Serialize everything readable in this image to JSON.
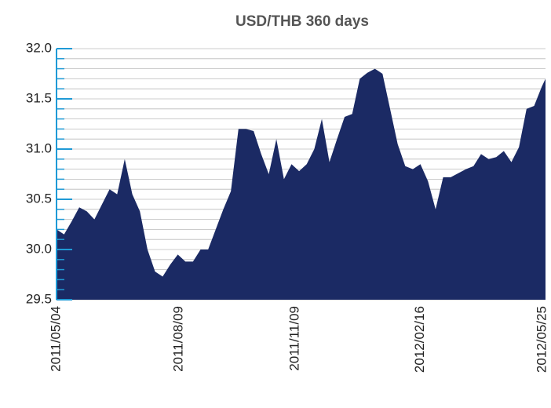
{
  "chart_data": {
    "type": "area",
    "title": "USD/THB 360 days",
    "x": [
      "2011/05/04",
      "2011/05/10",
      "2011/05/16",
      "2011/05/22",
      "2011/05/28",
      "2011/06/03",
      "2011/06/09",
      "2011/06/15",
      "2011/06/21",
      "2011/06/27",
      "2011/07/03",
      "2011/07/09",
      "2011/07/15",
      "2011/07/21",
      "2011/07/27",
      "2011/08/02",
      "2011/08/08",
      "2011/08/14",
      "2011/08/20",
      "2011/08/26",
      "2011/09/01",
      "2011/09/07",
      "2011/09/13",
      "2011/09/19",
      "2011/09/25",
      "2011/10/01",
      "2011/10/07",
      "2011/10/13",
      "2011/10/19",
      "2011/10/25",
      "2011/10/31",
      "2011/11/06",
      "2011/11/12",
      "2011/11/18",
      "2011/11/24",
      "2011/11/30",
      "2011/12/06",
      "2011/12/12",
      "2011/12/18",
      "2011/12/24",
      "2011/12/30",
      "2012/01/05",
      "2012/01/11",
      "2012/01/17",
      "2012/01/23",
      "2012/01/29",
      "2012/02/04",
      "2012/02/10",
      "2012/02/16",
      "2012/02/22",
      "2012/02/28",
      "2012/03/05",
      "2012/03/11",
      "2012/03/17",
      "2012/03/23",
      "2012/03/29",
      "2012/04/04",
      "2012/04/10",
      "2012/04/16",
      "2012/04/22",
      "2012/04/28",
      "2012/05/04",
      "2012/05/10",
      "2012/05/16",
      "2012/05/22",
      "2012/05/25"
    ],
    "values": [
      30.2,
      30.15,
      30.28,
      30.42,
      30.38,
      30.3,
      30.45,
      30.6,
      30.55,
      30.9,
      30.55,
      30.38,
      30.0,
      29.78,
      29.73,
      29.85,
      29.95,
      29.88,
      29.88,
      30.0,
      30.0,
      30.2,
      30.4,
      30.58,
      31.2,
      31.2,
      31.18,
      30.95,
      30.75,
      31.1,
      30.7,
      30.85,
      30.78,
      30.85,
      31.0,
      31.3,
      30.87,
      31.1,
      31.32,
      31.35,
      31.7,
      31.76,
      31.8,
      31.75,
      31.4,
      31.05,
      30.83,
      30.8,
      30.85,
      30.68,
      30.4,
      30.72,
      30.72,
      30.76,
      30.8,
      30.83,
      30.95,
      30.9,
      30.92,
      30.98,
      30.87,
      31.02,
      31.4,
      31.43,
      31.62,
      31.7
    ],
    "color": "#1b2a64",
    "xlim": [
      "2011/05/04",
      "2012/05/25"
    ],
    "xticks": [
      "2011/05/04",
      "2011/08/09",
      "2011/11/09",
      "2012/02/16",
      "2012/05/25"
    ],
    "ylim": [
      29.5,
      32
    ],
    "yticks": [
      29.5,
      {
        "value": 30,
        "label": "30.0"
      },
      30.5,
      {
        "value": 31,
        "label": "31.0"
      },
      31.5,
      {
        "value": 32,
        "label": "32.0"
      }
    ],
    "yticks_minor": [
      29.6,
      29.7,
      29.8,
      29.9,
      30.1,
      30.2,
      30.3,
      30.4,
      30.6,
      30.7,
      30.8,
      30.9,
      31.1,
      31.2,
      31.3,
      31.4,
      31.6,
      31.7,
      31.8,
      31.9
    ],
    "grid": true
  }
}
